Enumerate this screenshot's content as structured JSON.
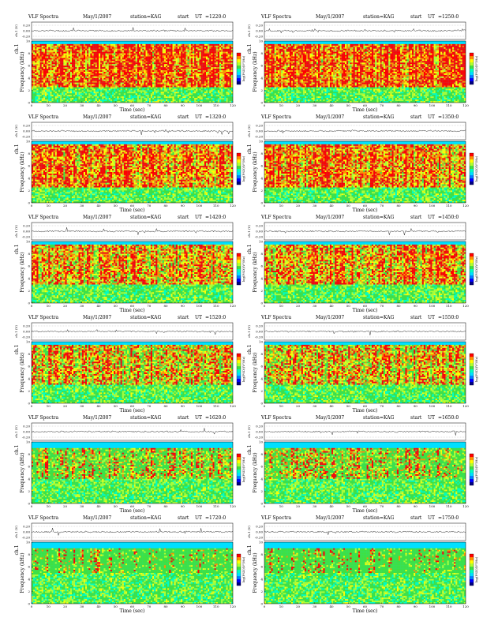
{
  "page": {
    "grid_columns": 2,
    "grid_rows": 6
  },
  "colors": {
    "scale": [
      "#000080",
      "#0000ff",
      "#0080ff",
      "#00e0ff",
      "#00ffc0",
      "#40e040",
      "#b0ff30",
      "#ffff00",
      "#ff9000",
      "#ff0000"
    ],
    "background_band": "#00e0ff",
    "trace": "#000000",
    "frame": "#000000"
  },
  "common": {
    "title": "VLF Spectra",
    "date": "May/1/2007",
    "station": "station=KAG",
    "start_label": "start",
    "ut_label": "UT",
    "time_axis_label": "Time (sec)",
    "freq_axis_label": "Frequency (kHz)",
    "channel_label": "ch.1",
    "top_axis_label": "ch.1 (V)",
    "colorbar_label": "log(PSD)(V²/Hz)"
  },
  "chart_data": [
    {
      "type": "heatmap",
      "start_ut": "=1220:0",
      "x": {
        "label": "Time (sec)",
        "range": [
          0,
          120
        ],
        "ticks": [
          0,
          10,
          20,
          30,
          40,
          50,
          60,
          70,
          80,
          90,
          100,
          110,
          120
        ]
      },
      "y": {
        "label": "Frequency (kHz)",
        "range": [
          0,
          10
        ],
        "ticks": [
          0,
          2,
          4,
          6,
          8,
          10
        ]
      },
      "trace": {
        "label": "ch.1 (V)",
        "ticks": [
          "0.20",
          "0.00",
          "-0.20"
        ],
        "range": [
          -0.2,
          0.2
        ]
      },
      "intensity": {
        "strong_band_khz": [
          2.5,
          9.5
        ],
        "hot_fraction": 0.55
      },
      "colorbar": {
        "label": "log(PSD)(V²/Hz)"
      }
    },
    {
      "type": "heatmap",
      "start_ut": "=1250:0",
      "x": {
        "label": "Time (sec)",
        "range": [
          0,
          120
        ],
        "ticks": [
          0,
          10,
          20,
          30,
          40,
          50,
          60,
          70,
          80,
          90,
          100,
          110,
          120
        ]
      },
      "y": {
        "label": "Frequency (kHz)",
        "range": [
          0,
          10
        ],
        "ticks": [
          0,
          2,
          4,
          6,
          8,
          10
        ]
      },
      "trace": {
        "label": "ch.1 (V)",
        "ticks": [
          "0.20",
          "0.00",
          "-0.20"
        ],
        "range": [
          -0.2,
          0.2
        ]
      },
      "intensity": {
        "strong_band_khz": [
          2.5,
          9.5
        ],
        "hot_fraction": 0.55
      },
      "colorbar": {
        "label": "log(PSD)(V²/Hz)"
      }
    },
    {
      "type": "heatmap",
      "start_ut": "=1320:0",
      "x": {
        "label": "Time (sec)",
        "range": [
          0,
          120
        ],
        "ticks": [
          0,
          10,
          20,
          30,
          40,
          50,
          60,
          70,
          80,
          90,
          100,
          110,
          120
        ]
      },
      "y": {
        "label": "Frequency (kHz)",
        "range": [
          0,
          10
        ],
        "ticks": [
          0,
          2,
          4,
          6,
          8,
          10
        ]
      },
      "trace": {
        "label": "ch.1 (V)",
        "ticks": [
          "0.20",
          "0.00",
          "-0.20"
        ],
        "range": [
          -0.2,
          0.2
        ]
      },
      "intensity": {
        "strong_band_khz": [
          2.5,
          9.5
        ],
        "hot_fraction": 0.5
      },
      "colorbar": {
        "label": "log(PSD)(V²/Hz)"
      }
    },
    {
      "type": "heatmap",
      "start_ut": "=1350:0",
      "x": {
        "label": "Time (sec)",
        "range": [
          0,
          120
        ],
        "ticks": [
          0,
          10,
          20,
          30,
          40,
          50,
          60,
          70,
          80,
          90,
          100,
          110,
          120
        ]
      },
      "y": {
        "label": "Frequency (kHz)",
        "range": [
          0,
          10
        ],
        "ticks": [
          0,
          2,
          4,
          6,
          8,
          10
        ]
      },
      "trace": {
        "label": "ch.1 (V)",
        "ticks": [
          "0.20",
          "0.00",
          "-0.20"
        ],
        "range": [
          -0.2,
          0.2
        ]
      },
      "intensity": {
        "strong_band_khz": [
          2.5,
          9.5
        ],
        "hot_fraction": 0.5
      },
      "colorbar": {
        "label": "log(PSD)(V²/Hz)"
      }
    },
    {
      "type": "heatmap",
      "start_ut": "=1420:0",
      "x": {
        "label": "Time (sec)",
        "range": [
          0,
          120
        ],
        "ticks": [
          0,
          10,
          20,
          30,
          40,
          50,
          60,
          70,
          80,
          90,
          100,
          110,
          120
        ]
      },
      "y": {
        "label": "Frequency (kHz)",
        "range": [
          0,
          10
        ],
        "ticks": [
          0,
          2,
          4,
          6,
          8,
          10
        ]
      },
      "trace": {
        "label": "ch.1 (V)",
        "ticks": [
          "0.20",
          "0.00",
          "-0.20"
        ],
        "range": [
          -0.2,
          0.2
        ]
      },
      "intensity": {
        "strong_band_khz": [
          3,
          9.5
        ],
        "hot_fraction": 0.45
      },
      "colorbar": {
        "label": "log(PSD)(V²/Hz)"
      }
    },
    {
      "type": "heatmap",
      "start_ut": "=1450:0",
      "x": {
        "label": "Time (sec)",
        "range": [
          0,
          120
        ],
        "ticks": [
          0,
          10,
          20,
          30,
          40,
          50,
          60,
          70,
          80,
          90,
          100,
          110,
          120
        ]
      },
      "y": {
        "label": "Frequency (kHz)",
        "range": [
          0,
          10
        ],
        "ticks": [
          0,
          2,
          4,
          6,
          8,
          10
        ]
      },
      "trace": {
        "label": "ch.1 (V)",
        "ticks": [
          "0.20",
          "0.00",
          "-0.20"
        ],
        "range": [
          -0.2,
          0.2
        ]
      },
      "intensity": {
        "strong_band_khz": [
          3,
          9.5
        ],
        "hot_fraction": 0.45
      },
      "colorbar": {
        "label": "log(PSD)(V²/Hz)"
      }
    },
    {
      "type": "heatmap",
      "start_ut": "=1520:0",
      "x": {
        "label": "Time (sec)",
        "range": [
          0,
          120
        ],
        "ticks": [
          0,
          10,
          20,
          30,
          40,
          50,
          60,
          70,
          80,
          90,
          100,
          110,
          120
        ]
      },
      "y": {
        "label": "Frequency (kHz)",
        "range": [
          0,
          10
        ],
        "ticks": [
          0,
          2,
          4,
          6,
          8,
          10
        ]
      },
      "trace": {
        "label": "ch.1 (V)",
        "ticks": [
          "0.20",
          "0.00",
          "-0.20"
        ],
        "range": [
          -0.2,
          0.2
        ]
      },
      "intensity": {
        "strong_band_khz": [
          3,
          9.5
        ],
        "hot_fraction": 0.4
      },
      "colorbar": {
        "label": "log(PSD)(V²/Hz)"
      }
    },
    {
      "type": "heatmap",
      "start_ut": "=1550:0",
      "x": {
        "label": "Time (sec)",
        "range": [
          0,
          120
        ],
        "ticks": [
          0,
          10,
          20,
          30,
          40,
          50,
          60,
          70,
          80,
          90,
          100,
          110,
          120
        ]
      },
      "y": {
        "label": "Frequency (kHz)",
        "range": [
          0,
          10
        ],
        "ticks": [
          0,
          2,
          4,
          6,
          8,
          10
        ]
      },
      "trace": {
        "label": "ch.1 (V)",
        "ticks": [
          "0.20",
          "0.00",
          "-0.20"
        ],
        "range": [
          -0.2,
          0.2
        ]
      },
      "intensity": {
        "strong_band_khz": [
          3,
          9.5
        ],
        "hot_fraction": 0.4
      },
      "colorbar": {
        "label": "log(PSD)(V²/Hz)"
      }
    },
    {
      "type": "heatmap",
      "start_ut": "=1620:0",
      "x": {
        "label": "Time (sec)",
        "range": [
          0,
          120
        ],
        "ticks": [
          0,
          10,
          20,
          30,
          40,
          50,
          60,
          70,
          80,
          90,
          100,
          110,
          120
        ]
      },
      "y": {
        "label": "Frequency (kHz)",
        "range": [
          0,
          10
        ],
        "ticks": [
          0,
          2,
          4,
          6,
          8,
          10
        ]
      },
      "trace": {
        "label": "ch.1 (V)",
        "ticks": [
          "0.20",
          "0.00",
          "-0.20"
        ],
        "range": [
          -0.2,
          0.2
        ]
      },
      "intensity": {
        "strong_band_khz": [
          4,
          9
        ],
        "hot_fraction": 0.3
      },
      "colorbar": {
        "label": "log(PSD)(V²/Hz)"
      }
    },
    {
      "type": "heatmap",
      "start_ut": "=1650:0",
      "x": {
        "label": "Time (sec)",
        "range": [
          0,
          120
        ],
        "ticks": [
          0,
          10,
          20,
          30,
          40,
          50,
          60,
          70,
          80,
          90,
          100,
          110,
          120
        ]
      },
      "y": {
        "label": "Frequency (kHz)",
        "range": [
          0,
          10
        ],
        "ticks": [
          0,
          2,
          4,
          6,
          8,
          10
        ]
      },
      "trace": {
        "label": "ch.1 (V)",
        "ticks": [
          "0.20",
          "0.00",
          "-0.20"
        ],
        "range": [
          -0.2,
          0.2
        ]
      },
      "intensity": {
        "strong_band_khz": [
          4,
          9
        ],
        "hot_fraction": 0.3
      },
      "colorbar": {
        "label": "log(PSD)(V²/Hz)"
      }
    },
    {
      "type": "heatmap",
      "start_ut": "=1720:0",
      "x": {
        "label": "Time (sec)",
        "range": [
          0,
          120
        ],
        "ticks": [
          0,
          10,
          20,
          30,
          40,
          50,
          60,
          70,
          80,
          90,
          100,
          110,
          120
        ]
      },
      "y": {
        "label": "Frequency (kHz)",
        "range": [
          0,
          10
        ],
        "ticks": [
          0,
          2,
          4,
          6,
          8,
          10
        ]
      },
      "trace": {
        "label": "ch.1 (V)",
        "ticks": [
          "0.20",
          "0.00",
          "-0.20"
        ],
        "range": [
          -0.2,
          0.2
        ]
      },
      "intensity": {
        "strong_band_khz": [
          5,
          9
        ],
        "hot_fraction": 0.22
      },
      "colorbar": {
        "label": "log(PSD)(V²/Hz)"
      }
    },
    {
      "type": "heatmap",
      "start_ut": "=1750:0",
      "x": {
        "label": "Time (sec)",
        "range": [
          0,
          120
        ],
        "ticks": [
          0,
          10,
          20,
          30,
          40,
          50,
          60,
          70,
          80,
          90,
          100,
          110,
          120
        ]
      },
      "y": {
        "label": "Frequency (kHz)",
        "range": [
          0,
          10
        ],
        "ticks": [
          0,
          2,
          4,
          6,
          8,
          10
        ]
      },
      "trace": {
        "label": "ch.1 (V)",
        "ticks": [
          "0.20",
          "0.00",
          "-0.20"
        ],
        "range": [
          -0.2,
          0.2
        ]
      },
      "intensity": {
        "strong_band_khz": [
          5,
          9
        ],
        "hot_fraction": 0.2
      },
      "colorbar": {
        "label": "log(PSD)(V²/Hz)"
      }
    }
  ]
}
